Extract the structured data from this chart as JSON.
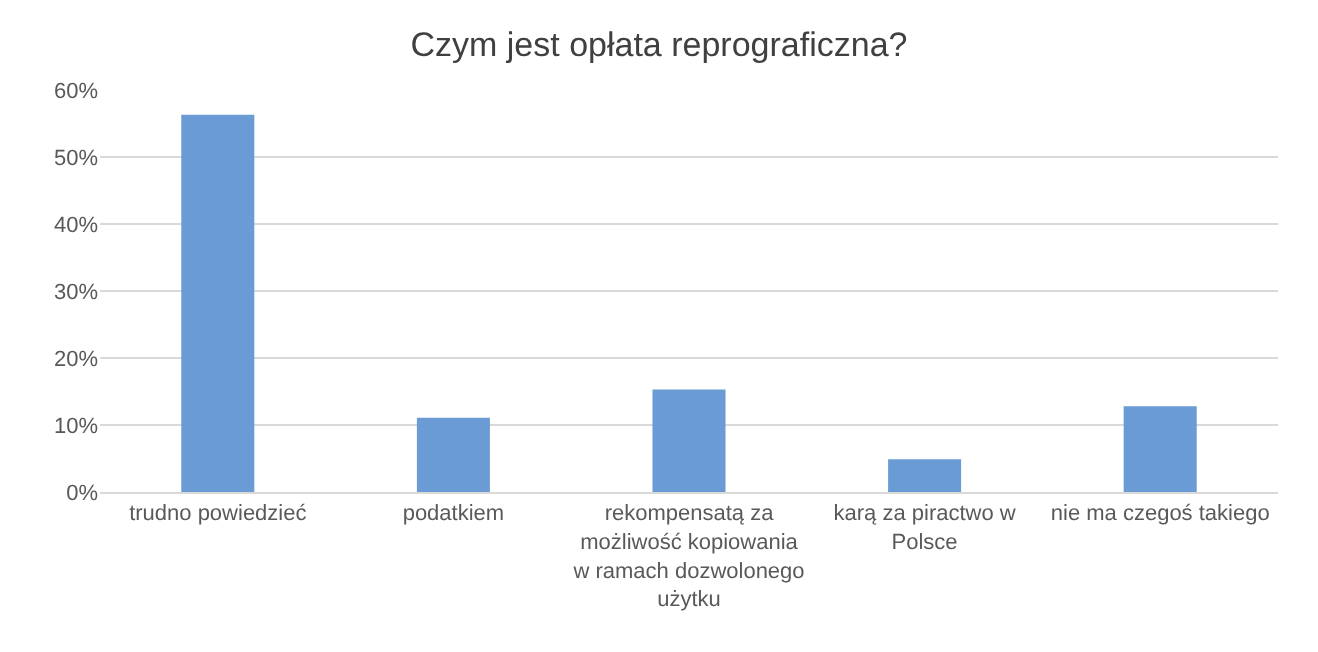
{
  "chart_data": {
    "type": "bar",
    "title": "Czym jest opłata reprograficzna?",
    "categories": [
      "trudno powiedzieć",
      "podatkiem",
      "rekompensatą za możliwość kopiowania w ramach dozwolonego użytku",
      "karą za piractwo w Polsce",
      "nie ma czegoś takiego"
    ],
    "values": [
      56.3,
      11.1,
      15.3,
      4.9,
      12.8
    ],
    "color": "#6b9bd5",
    "ylim": [
      0,
      60
    ],
    "yticks": [
      {
        "value": 0,
        "label": "0%"
      },
      {
        "value": 10,
        "label": "10%"
      },
      {
        "value": 20,
        "label": "20%"
      },
      {
        "value": 30,
        "label": "30%"
      },
      {
        "value": 40,
        "label": "40%"
      },
      {
        "value": 50,
        "label": "50%"
      },
      {
        "value": 60,
        "label": "60%"
      }
    ],
    "grid": "y"
  }
}
